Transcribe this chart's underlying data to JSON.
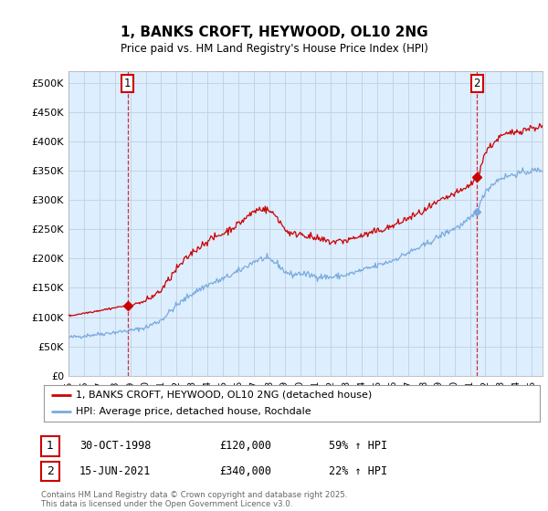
{
  "title": "1, BANKS CROFT, HEYWOOD, OL10 2NG",
  "subtitle": "Price paid vs. HM Land Registry's House Price Index (HPI)",
  "legend_line1": "1, BANKS CROFT, HEYWOOD, OL10 2NG (detached house)",
  "legend_line2": "HPI: Average price, detached house, Rochdale",
  "sale1_date": "30-OCT-1998",
  "sale1_price": "£120,000",
  "sale1_hpi": "59% ↑ HPI",
  "sale2_date": "15-JUN-2021",
  "sale2_price": "£340,000",
  "sale2_hpi": "22% ↑ HPI",
  "footer": "Contains HM Land Registry data © Crown copyright and database right 2025.\nThis data is licensed under the Open Government Licence v3.0.",
  "line_color_red": "#cc0000",
  "line_color_blue": "#7aaadd",
  "vline_color": "#cc0000",
  "bg_color": "#ddeeff",
  "grid_color": "#c0d0e0",
  "ylim": [
    0,
    520000
  ],
  "yticks": [
    0,
    50000,
    100000,
    150000,
    200000,
    250000,
    300000,
    350000,
    400000,
    450000,
    500000
  ],
  "sale1_year": 1998.83,
  "sale1_price_val": 120000,
  "sale2_year": 2021.46,
  "sale2_price_val": 340000,
  "xmin": 1995.0,
  "xmax": 2025.7
}
